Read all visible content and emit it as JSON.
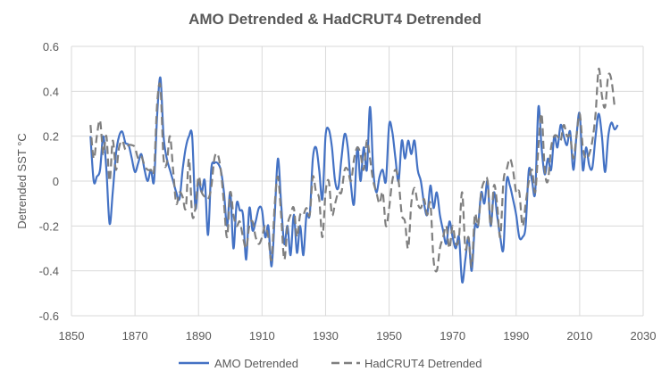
{
  "chart_data": {
    "type": "line",
    "title": "AMO Detrended & HadCRUT4 Detrended",
    "xlabel": "",
    "ylabel": "Detrended SST °C",
    "xlim": [
      1850,
      2030
    ],
    "ylim": [
      -0.6,
      0.6
    ],
    "x_ticks": [
      "1850",
      "1870",
      "1890",
      "1910",
      "1930",
      "1950",
      "1970",
      "1990",
      "2010",
      "2030"
    ],
    "y_ticks": [
      "0.6",
      "0.4",
      "0.2",
      "0",
      "-0.2",
      "-0.4",
      "-0.6"
    ],
    "grid": true,
    "legend": "bottom",
    "x_start": 1856,
    "series": [
      {
        "name": "AMO Detrended",
        "color": "#4472C4",
        "style": "solid",
        "values": [
          0.2,
          0.0,
          0.02,
          0.05,
          0.2,
          0.05,
          -0.19,
          -0.05,
          0.12,
          0.2,
          0.22,
          0.17,
          0.16,
          0.1,
          0.04,
          0.08,
          0.12,
          0.05,
          0.0,
          0.05,
          0.0,
          0.3,
          0.46,
          0.2,
          0.1,
          0.05,
          0.0,
          -0.05,
          -0.08,
          0.05,
          0.15,
          0.2,
          0.2,
          -0.12,
          0.0,
          -0.05,
          0.0,
          -0.24,
          0.05,
          0.08,
          0.08,
          0.05,
          -0.05,
          -0.2,
          -0.05,
          -0.3,
          -0.1,
          -0.13,
          -0.15,
          -0.35,
          -0.12,
          -0.22,
          -0.18,
          -0.12,
          -0.13,
          -0.25,
          -0.2,
          -0.38,
          -0.15,
          0.1,
          -0.1,
          -0.28,
          -0.2,
          -0.33,
          -0.15,
          -0.32,
          -0.2,
          -0.33,
          -0.15,
          -0.15,
          0.1,
          0.15,
          0.05,
          -0.08,
          0.2,
          0.23,
          0.15,
          0.0,
          -0.03,
          0.1,
          0.21,
          0.15,
          -0.02,
          -0.1,
          0.15,
          0.0,
          0.15,
          0.05,
          0.33,
          0.05,
          -0.05,
          0.02,
          0.05,
          0.0,
          0.25,
          0.22,
          0.1,
          0.0,
          0.18,
          0.1,
          0.18,
          0.12,
          0.18,
          0.05,
          0.0,
          -0.1,
          -0.15,
          -0.02,
          -0.12,
          -0.05,
          -0.15,
          -0.22,
          -0.28,
          -0.18,
          -0.25,
          -0.3,
          -0.25,
          -0.45,
          -0.35,
          -0.25,
          -0.4,
          -0.2,
          -0.2,
          -0.05,
          -0.1,
          0.0,
          -0.2,
          -0.05,
          -0.15,
          -0.25,
          -0.3,
          0.0,
          -0.02,
          -0.08,
          -0.15,
          -0.25,
          -0.25,
          -0.2,
          0.05,
          0.0,
          -0.05,
          0.33,
          0.15,
          0.03,
          0.1,
          0.05,
          0.2,
          0.15,
          0.25,
          0.2,
          0.16,
          0.22,
          0.05,
          0.2,
          0.3,
          0.05,
          0.15,
          0.07,
          0.06,
          0.2,
          0.3,
          0.2,
          0.04,
          0.2,
          0.26,
          0.23,
          0.25
        ]
      },
      {
        "name": "HadCRUT4 Detrended",
        "color": "#7F7F7F",
        "style": "dashed",
        "values": [
          0.25,
          0.1,
          0.2,
          0.27,
          0.12,
          0.2,
          0.0,
          0.18,
          0.05,
          0.15,
          0.18,
          0.14,
          0.16,
          0.16,
          0.15,
          0.1,
          0.11,
          0.07,
          0.05,
          0.05,
          0.05,
          0.35,
          0.42,
          0.1,
          0.08,
          0.2,
          0.05,
          -0.1,
          -0.05,
          -0.07,
          -0.12,
          0.1,
          -0.15,
          -0.12,
          0.02,
          -0.05,
          -0.07,
          -0.08,
          -0.03,
          0.1,
          0.12,
          0.05,
          -0.1,
          -0.25,
          -0.05,
          -0.15,
          -0.2,
          -0.18,
          -0.25,
          -0.3,
          -0.2,
          -0.18,
          -0.25,
          -0.28,
          -0.25,
          -0.2,
          -0.25,
          -0.35,
          -0.1,
          0.02,
          -0.15,
          -0.35,
          -0.2,
          -0.15,
          -0.12,
          -0.25,
          -0.15,
          -0.15,
          -0.12,
          -0.15,
          0.02,
          -0.05,
          -0.08,
          -0.25,
          -0.05,
          0.0,
          -0.15,
          -0.1,
          -0.05,
          -0.05,
          0.05,
          0.05,
          0.0,
          0.1,
          0.15,
          0.12,
          0.05,
          0.18,
          0.1,
          0.0,
          -0.05,
          -0.1,
          -0.05,
          -0.2,
          -0.12,
          0.0,
          0.05,
          0.0,
          -0.15,
          -0.18,
          -0.3,
          -0.1,
          -0.03,
          -0.1,
          -0.12,
          -0.08,
          -0.15,
          -0.1,
          -0.35,
          -0.4,
          -0.3,
          -0.25,
          -0.2,
          -0.3,
          -0.2,
          -0.28,
          -0.25,
          -0.05,
          -0.3,
          -0.25,
          -0.38,
          -0.15,
          -0.2,
          -0.05,
          0.0,
          0.0,
          -0.2,
          -0.02,
          -0.1,
          -0.25,
          0.0,
          0.05,
          0.1,
          0.05,
          -0.05,
          -0.05,
          -0.2,
          -0.1,
          0.0,
          0.05,
          -0.05,
          0.15,
          0.3,
          0.05,
          0.0,
          0.15,
          0.2,
          0.2,
          0.18,
          0.25,
          0.2,
          0.2,
          0.1,
          0.2,
          0.3,
          0.15,
          0.1,
          0.12,
          0.18,
          0.3,
          0.5,
          0.38,
          0.33,
          0.47,
          0.45,
          0.33
        ]
      }
    ]
  }
}
